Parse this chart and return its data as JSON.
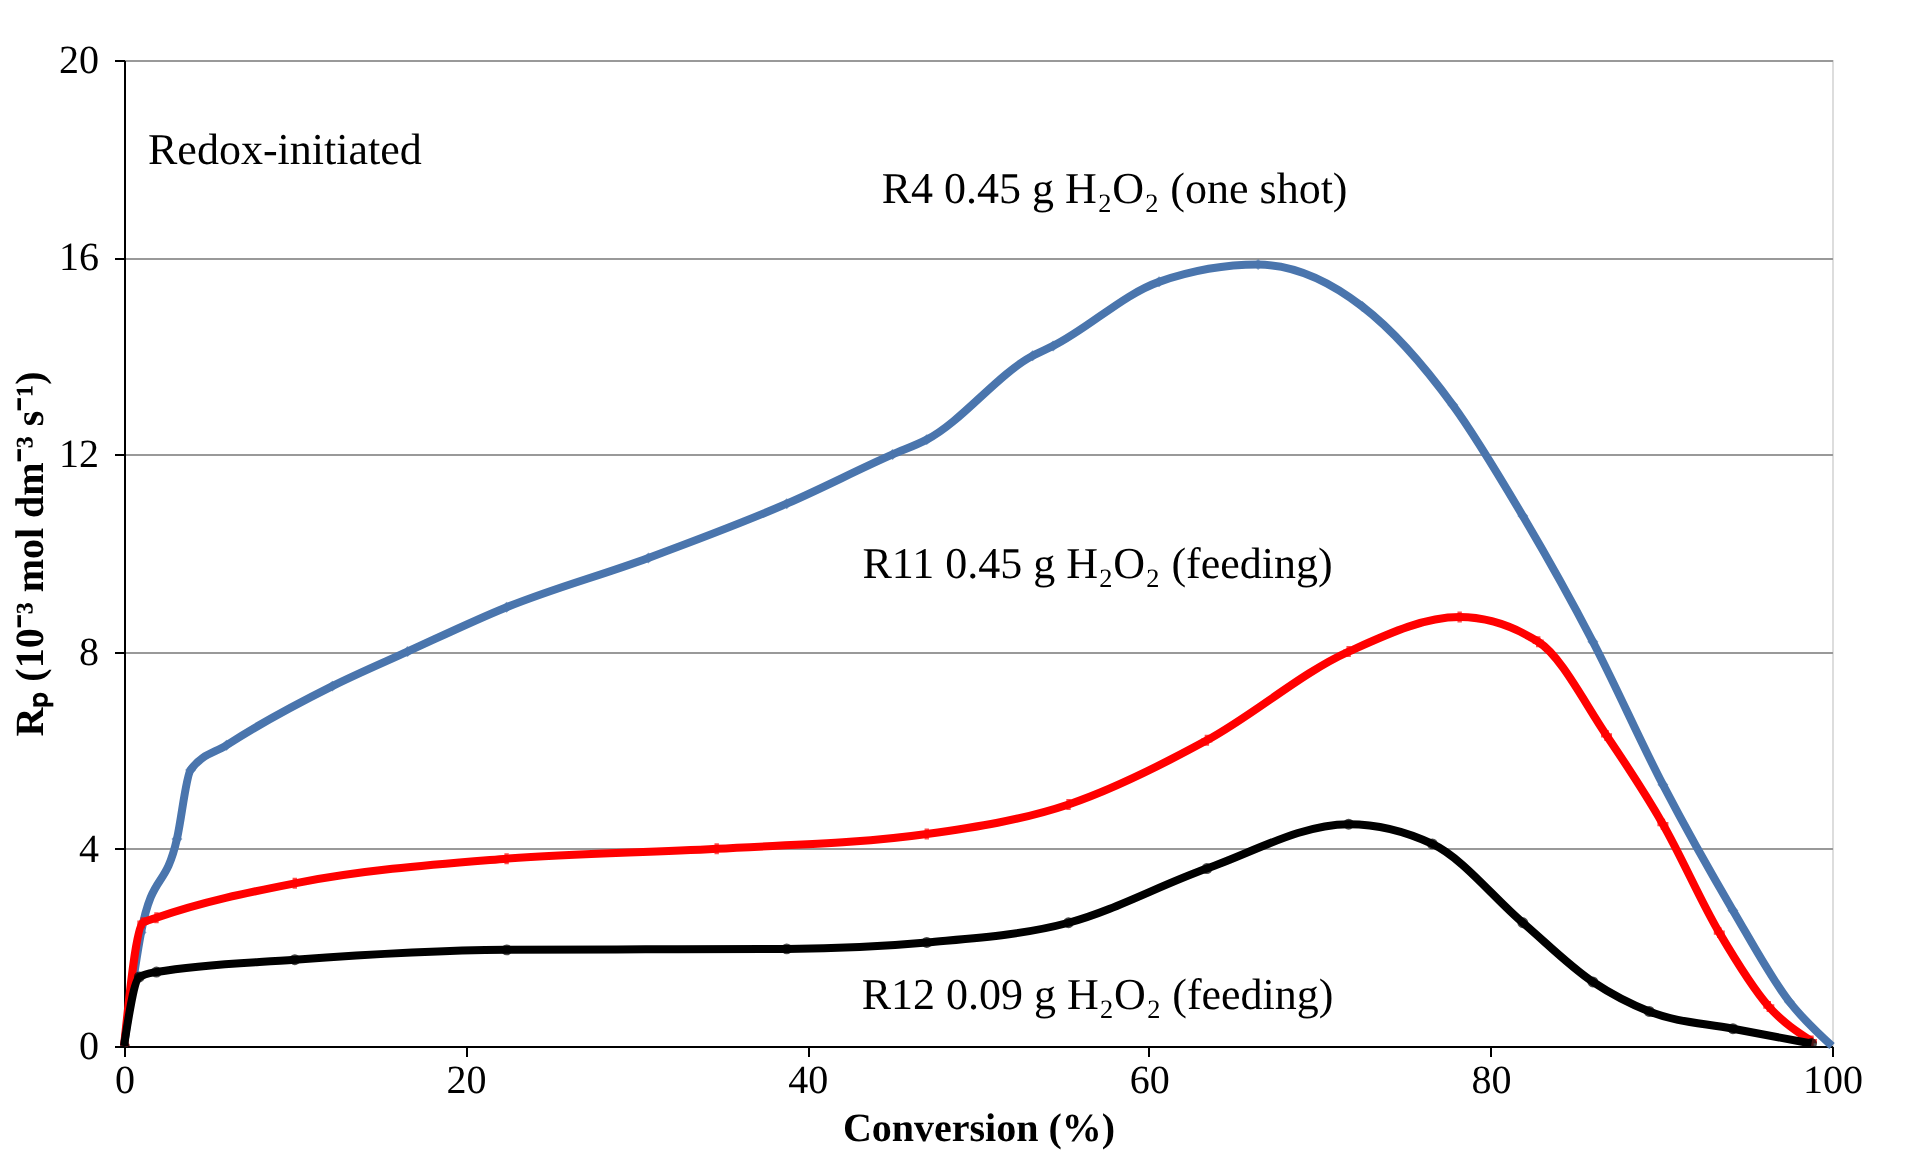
{
  "chart_data": {
    "type": "line",
    "xlabel": "Conversion (%)",
    "ylabel": "Rₚ (10⁻³ mol dm⁻³ s⁻¹)",
    "annotations": [
      "Redox-initiated"
    ],
    "xlim": [
      0,
      100
    ],
    "xticks": [
      0,
      20,
      40,
      60,
      80,
      100
    ],
    "ylim": [
      0,
      20
    ],
    "yticks": [
      0,
      4,
      8,
      12,
      16,
      20
    ],
    "grid": "y",
    "series": [
      {
        "name": "R4 0.45 g H₂O₂ (one shot)",
        "color": "#4a75ad",
        "marker": "diamond",
        "x": [
          0,
          1,
          3.1,
          3.9,
          6,
          12.2,
          16.6,
          22.4,
          30.7,
          38.8,
          45,
          47,
          53.2,
          54.4,
          60.6,
          66.4,
          72.5,
          77.8,
          81.9,
          86,
          90.1,
          94.2,
          97.5,
          100
        ],
        "values": [
          0,
          2.3,
          4.2,
          5.6,
          6.1,
          7.3,
          8.0,
          8.9,
          9.9,
          11.0,
          12.0,
          12.3,
          14.0,
          14.2,
          15.5,
          15.85,
          15.0,
          13.0,
          10.75,
          8.2,
          5.3,
          2.75,
          0.9,
          0
        ]
      },
      {
        "name": "R11 0.45 g H₂O₂ (feeding)",
        "color": "#ff0000",
        "marker": "cross",
        "x": [
          0,
          1.1,
          1.9,
          10,
          22.4,
          34.7,
          47,
          55.3,
          63.4,
          71.7,
          78.2,
          82.8,
          86.8,
          90.1,
          93.4,
          96.3,
          98.8
        ],
        "values": [
          0,
          2.5,
          2.6,
          3.3,
          3.8,
          4.0,
          4.3,
          4.9,
          6.2,
          8.0,
          8.7,
          8.2,
          6.3,
          4.5,
          2.3,
          0.8,
          0.1
        ]
      },
      {
        "name": "R12 0.09 g H₂O₂ (feeding)",
        "color": "#000000",
        "marker": "circle",
        "x": [
          0,
          0.9,
          1.9,
          10,
          22.4,
          38.8,
          47,
          55.3,
          63.4,
          71.7,
          76.6,
          81.9,
          86,
          89.3,
          94.2,
          98.8
        ],
        "values": [
          0,
          1.4,
          1.5,
          1.75,
          1.95,
          1.97,
          2.1,
          2.5,
          3.6,
          4.5,
          4.1,
          2.5,
          1.3,
          0.7,
          0.35,
          0.05
        ]
      }
    ]
  }
}
